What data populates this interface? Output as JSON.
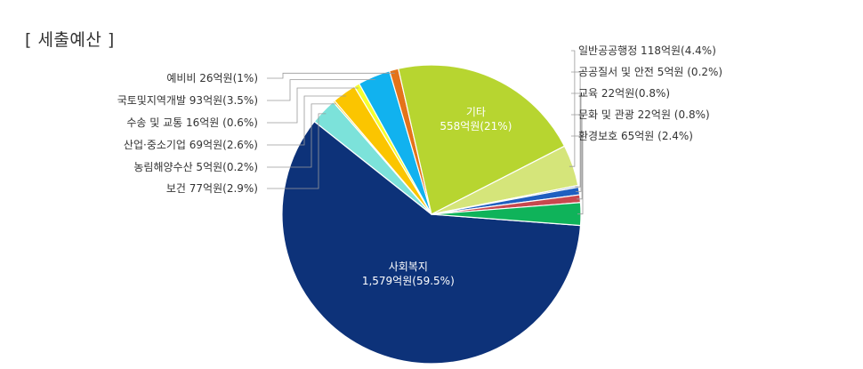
{
  "page": {
    "title": "[ 세출예산 ]"
  },
  "chart_data": {
    "type": "pie",
    "title": "[ 세출예산 ]",
    "unit": "억원",
    "slices": [
      {
        "name": "사회복지",
        "value": 1579,
        "percent": 59.5,
        "color": "#0d3279",
        "label": "1,579억원(59.5%)",
        "placement": "inside"
      },
      {
        "name": "보건",
        "value": 77,
        "percent": 2.9,
        "color": "#7ce2da",
        "label": "보건 77억원(2.9%)",
        "placement": "left"
      },
      {
        "name": "농림해양수산",
        "value": 5,
        "percent": 0.2,
        "color": "#ffc400",
        "label": "농림해양수산 5억원(0.2%)",
        "placement": "left"
      },
      {
        "name": "산업·중소기업",
        "value": 69,
        "percent": 2.6,
        "color": "#fbc500",
        "label": "산업·중소기업 69억원(2.6%)",
        "placement": "left"
      },
      {
        "name": "수송 및 교통",
        "value": 16,
        "percent": 0.6,
        "color": "#f6ff2e",
        "label": "수송 및 교통 16억원 (0.6%)",
        "placement": "left"
      },
      {
        "name": "국토및지역개발",
        "value": 93,
        "percent": 3.5,
        "color": "#11b2ef",
        "label": "국토및지역개발 93억원(3.5%)",
        "placement": "left"
      },
      {
        "name": "예비비",
        "value": 26,
        "percent": 1,
        "color": "#e4731a",
        "label": "예비비 26억원(1%)",
        "placement": "left"
      },
      {
        "name": "기타",
        "value": 558,
        "percent": 21,
        "color": "#b7d530",
        "label": "558억원(21%)",
        "placement": "inside"
      },
      {
        "name": "일반공공행정",
        "value": 118,
        "percent": 4.4,
        "color": "#d5e57a",
        "label": "일반공공행정 118억원(4.4%)",
        "placement": "right"
      },
      {
        "name": "공공질서 및 안전",
        "value": 5,
        "percent": 0.2,
        "color": "#8fa7cf",
        "label": "공공질서 및 안전 5억원 (0.2%)",
        "placement": "right"
      },
      {
        "name": "교육",
        "value": 22,
        "percent": 0.8,
        "color": "#1f5fc0",
        "label": "교육 22억원(0.8%)",
        "placement": "right"
      },
      {
        "name": "문화 및 관광",
        "value": 22,
        "percent": 0.8,
        "color": "#c8484e",
        "label": "문화 및 관광 22억원 (0.8%)",
        "placement": "right"
      },
      {
        "name": "환경보호",
        "value": 65,
        "percent": 2.4,
        "color": "#0fb35a",
        "label": "환경보호 65억원 (2.4%)",
        "placement": "right"
      }
    ]
  }
}
